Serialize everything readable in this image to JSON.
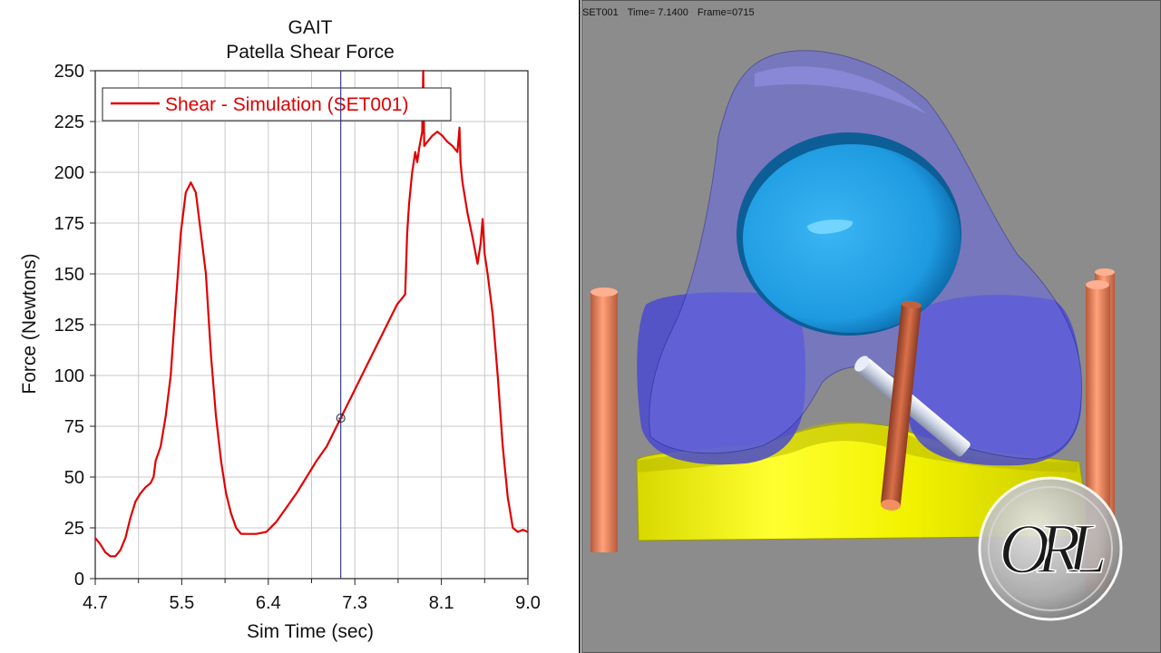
{
  "plot": {
    "title": "GAIT",
    "subtitle": "Patella Shear Force"
  },
  "viewport": {
    "set_name": "SET001",
    "time_label": "Time= 7.1400",
    "frame_label": "Frame=0715",
    "logo_text": "ORL",
    "colors": {
      "background": "#8c8c8c",
      "femur_translucent": "#5a5ad8",
      "patella_cup": "#2aa6e8",
      "tibia": "#ffff00",
      "pins": "#e8835a",
      "rod": "#b8c8d8"
    }
  },
  "chart_data": {
    "type": "line",
    "title": "GAIT",
    "subtitle": "Patella Shear Force",
    "xlabel": "Sim Time (sec)",
    "ylabel": "Force (Newtons)",
    "xlim": [
      4.7,
      9.0
    ],
    "ylim": [
      0,
      250
    ],
    "x_ticks": [
      "4.7",
      "5.5",
      "6.4",
      "7.3",
      "8.1",
      "9.0"
    ],
    "y_ticks": [
      "0",
      "25",
      "50",
      "75",
      "100",
      "125",
      "150",
      "175",
      "200",
      "225",
      "250"
    ],
    "grid": true,
    "legend_position": "top-left",
    "cursor_time": 7.14,
    "cursor_value": 79,
    "series": [
      {
        "name": "Shear - Simulation (SET001)",
        "color": "#e00000",
        "points": [
          [
            4.7,
            20
          ],
          [
            4.75,
            17
          ],
          [
            4.8,
            13
          ],
          [
            4.85,
            11
          ],
          [
            4.9,
            11
          ],
          [
            4.95,
            14
          ],
          [
            5.0,
            20
          ],
          [
            5.05,
            30
          ],
          [
            5.1,
            38
          ],
          [
            5.15,
            42
          ],
          [
            5.2,
            45
          ],
          [
            5.25,
            47
          ],
          [
            5.28,
            50
          ],
          [
            5.3,
            58
          ],
          [
            5.35,
            65
          ],
          [
            5.4,
            80
          ],
          [
            5.45,
            100
          ],
          [
            5.5,
            135
          ],
          [
            5.55,
            170
          ],
          [
            5.6,
            190
          ],
          [
            5.65,
            195
          ],
          [
            5.7,
            190
          ],
          [
            5.75,
            170
          ],
          [
            5.8,
            150
          ],
          [
            5.85,
            110
          ],
          [
            5.9,
            80
          ],
          [
            5.95,
            58
          ],
          [
            6.0,
            42
          ],
          [
            6.05,
            32
          ],
          [
            6.1,
            25
          ],
          [
            6.15,
            22
          ],
          [
            6.2,
            22
          ],
          [
            6.3,
            22
          ],
          [
            6.4,
            23
          ],
          [
            6.5,
            28
          ],
          [
            6.6,
            35
          ],
          [
            6.7,
            42
          ],
          [
            6.8,
            50
          ],
          [
            6.9,
            58
          ],
          [
            7.0,
            65
          ],
          [
            7.1,
            75
          ],
          [
            7.14,
            79
          ],
          [
            7.2,
            85
          ],
          [
            7.3,
            95
          ],
          [
            7.4,
            105
          ],
          [
            7.5,
            115
          ],
          [
            7.6,
            125
          ],
          [
            7.7,
            135
          ],
          [
            7.75,
            138
          ],
          [
            7.78,
            140
          ],
          [
            7.8,
            170
          ],
          [
            7.82,
            185
          ],
          [
            7.85,
            200
          ],
          [
            7.88,
            210
          ],
          [
            7.9,
            205
          ],
          [
            7.92,
            212
          ],
          [
            7.95,
            220
          ],
          [
            7.96,
            250
          ],
          [
            7.97,
            213
          ],
          [
            8.0,
            215
          ],
          [
            8.05,
            218
          ],
          [
            8.1,
            220
          ],
          [
            8.15,
            218
          ],
          [
            8.2,
            215
          ],
          [
            8.25,
            213
          ],
          [
            8.3,
            210
          ],
          [
            8.32,
            222
          ],
          [
            8.33,
            205
          ],
          [
            8.35,
            195
          ],
          [
            8.4,
            180
          ],
          [
            8.45,
            168
          ],
          [
            8.5,
            155
          ],
          [
            8.53,
            165
          ],
          [
            8.55,
            177
          ],
          [
            8.57,
            160
          ],
          [
            8.6,
            150
          ],
          [
            8.65,
            130
          ],
          [
            8.7,
            100
          ],
          [
            8.75,
            65
          ],
          [
            8.8,
            40
          ],
          [
            8.85,
            25
          ],
          [
            8.9,
            23
          ],
          [
            8.95,
            24
          ],
          [
            9.0,
            23
          ]
        ]
      }
    ]
  }
}
